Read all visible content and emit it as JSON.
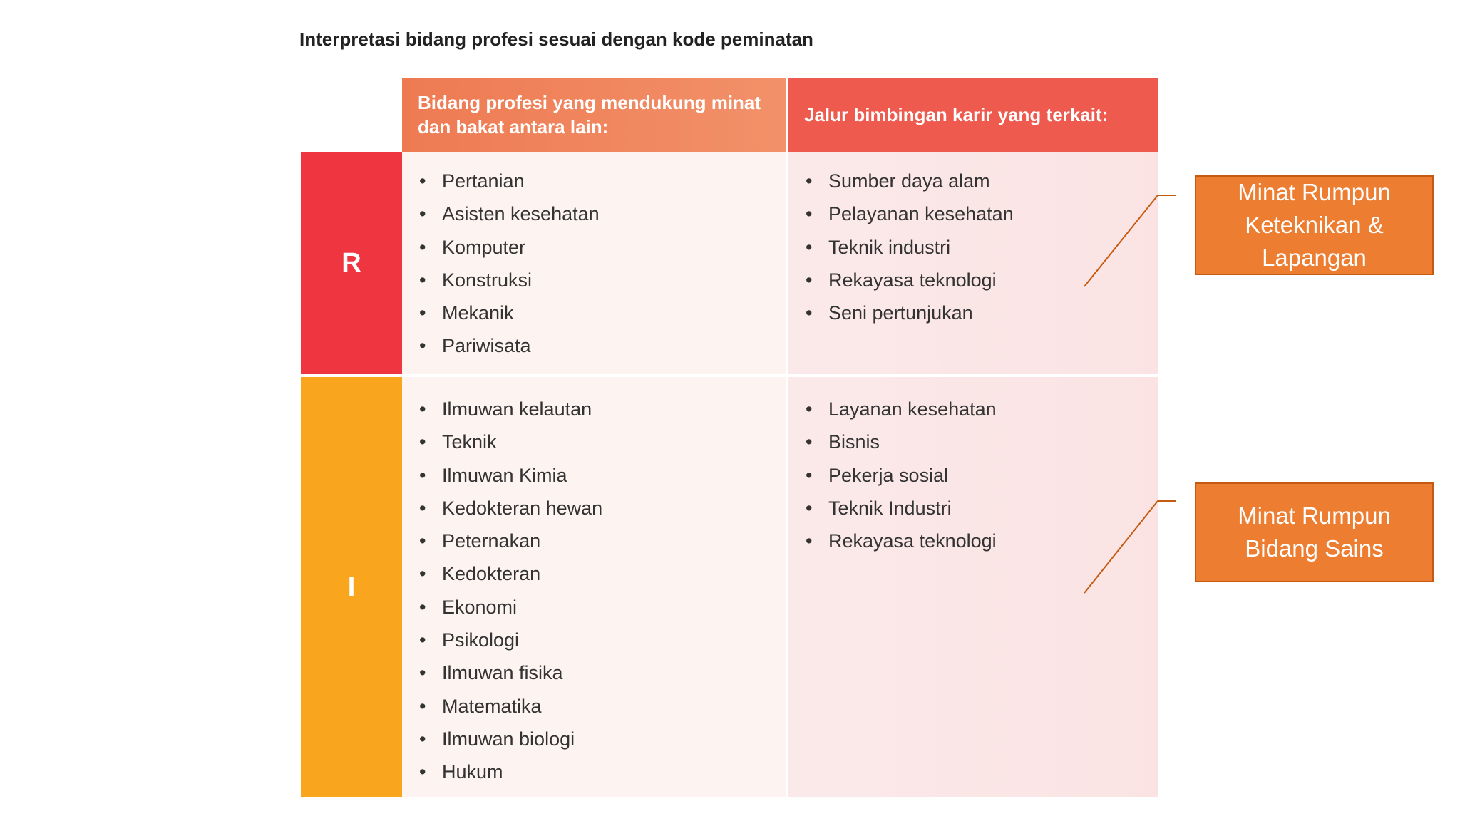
{
  "title": "Interpretasi bidang profesi sesuai dengan kode peminatan",
  "table": {
    "headers": {
      "col_a": "Bidang profesi yang mendukung minat dan bakat antara lain:",
      "col_b": "Jalur bimbingan karir yang terkait:"
    },
    "colors": {
      "r": "#ee3540",
      "i": "#f9a61e",
      "head_a": "#ee7a52",
      "head_b": "#ef5a4f"
    },
    "rows": [
      {
        "code": "R",
        "professions": [
          "Pertanian",
          "Asisten kesehatan",
          "Komputer",
          "Konstruksi",
          "Mekanik",
          "Pariwisata"
        ],
        "career_paths": [
          "Sumber daya alam",
          "Pelayanan kesehatan",
          "Teknik industri",
          "Rekayasa teknologi",
          "Seni pertunjukan"
        ]
      },
      {
        "code": "I",
        "professions": [
          "Ilmuwan kelautan",
          "Teknik",
          "Ilmuwan Kimia",
          "Kedokteran hewan",
          "Peternakan",
          "Kedokteran",
          "Ekonomi",
          "Psikologi",
          "Ilmuwan fisika",
          "Matematika",
          "Ilmuwan biologi",
          "Hukum"
        ],
        "career_paths": [
          "Layanan kesehatan",
          "Bisnis",
          "Pekerja sosial",
          "Teknik Industri",
          "Rekayasa teknologi"
        ]
      }
    ]
  },
  "callouts": {
    "first": {
      "line1": "Minat Rumpun",
      "line2": "Keteknikan &",
      "line3": "Lapangan"
    },
    "second": {
      "line1": "Minat Rumpun",
      "line2": "Bidang Sains"
    }
  }
}
